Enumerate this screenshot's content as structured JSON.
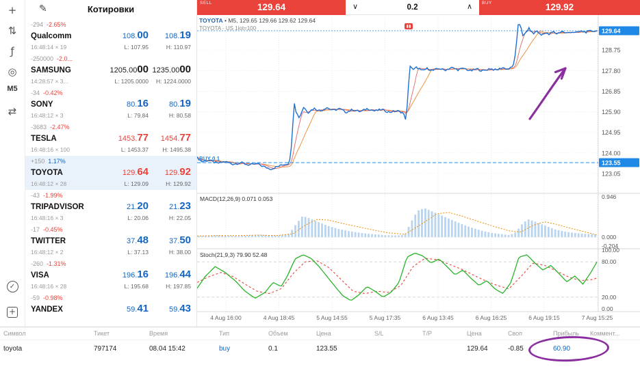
{
  "colors": {
    "red": "#e8423b",
    "blue": "#1565c0",
    "axis_blue": "#1e88e5",
    "line_blue": "#1d6fd1",
    "green": "#28b328",
    "purple": "#8b2fa0",
    "hist_fill": "#b9d4ef",
    "orange": "#f08c00"
  },
  "left_toolbar": {
    "icons": [
      {
        "name": "crosshair-icon",
        "glyph": "+"
      },
      {
        "name": "chart-bars-icon",
        "glyph": "⇅"
      },
      {
        "name": "indicators-icon",
        "glyph": "ƒ"
      },
      {
        "name": "objects-icon",
        "glyph": "◎"
      },
      {
        "name": "timeframe-m5-button",
        "glyph": "M5"
      },
      {
        "name": "cursor-mode-icon",
        "glyph": "⇄"
      }
    ],
    "bottom_icons": [
      {
        "name": "trade-check-icon",
        "glyph": "✓",
        "shape": "ring"
      },
      {
        "name": "add-order-icon",
        "glyph": "+",
        "shape": "sq"
      }
    ]
  },
  "quotes": {
    "title": "Котировки",
    "edit_icon_glyph": "✎",
    "rows": [
      {
        "symbol": "Qualcomm",
        "change": "-294",
        "change_pct": "-2.65%",
        "pct_dir": "down",
        "time": "16:48:14",
        "spread": "19",
        "bid_main": "108.",
        "bid_big": "00",
        "ask_main": "108.",
        "ask_big": "19",
        "low": "L: 107.95",
        "high": "H: 110.97",
        "color": "blue",
        "selected": false
      },
      {
        "symbol": "SAMSUNG",
        "change": "-250000",
        "change_pct": "-2.0...",
        "pct_dir": "down",
        "time": "14:28:57",
        "spread": "3...",
        "bid_main": "1205.00",
        "bid_big": "00",
        "ask_main": "1235.00",
        "ask_big": "00",
        "low": "L: 1205.0000",
        "high": "H: 1224.0000",
        "color": "black",
        "selected": false
      },
      {
        "symbol": "SONY",
        "change": "-34",
        "change_pct": "-0.42%",
        "pct_dir": "down",
        "time": "16:48:12",
        "spread": "3",
        "bid_main": "80.",
        "bid_big": "16",
        "ask_main": "80.",
        "ask_big": "19",
        "low": "L: 79.84",
        "high": "H: 80.58",
        "color": "blue",
        "selected": false
      },
      {
        "symbol": "TESLA",
        "change": "-3683",
        "change_pct": "-2.47%",
        "pct_dir": "down",
        "time": "16:48:16",
        "spread": "100",
        "bid_main": "1453.",
        "bid_big": "77",
        "ask_main": "1454.",
        "ask_big": "77",
        "low": "L: 1453.37",
        "high": "H: 1495.38",
        "color": "red",
        "selected": false
      },
      {
        "symbol": "TOYOTA",
        "change": "+150",
        "change_pct": "1.17%",
        "pct_dir": "up",
        "time": "16:48:12",
        "spread": "28",
        "bid_main": "129.",
        "bid_big": "64",
        "ask_main": "129.",
        "ask_big": "92",
        "low": "L: 129.09",
        "high": "H: 129.92",
        "color": "red",
        "selected": true
      },
      {
        "symbol": "TRIPADVISOR",
        "change": "-43",
        "change_pct": "-1.99%",
        "pct_dir": "down",
        "time": "16:48:16",
        "spread": "3",
        "bid_main": "21.",
        "bid_big": "20",
        "ask_main": "21.",
        "ask_big": "23",
        "low": "L: 20.06",
        "high": "H: 22.05",
        "color": "blue",
        "selected": false
      },
      {
        "symbol": "TWITTER",
        "change": "-17",
        "change_pct": "-0.45%",
        "pct_dir": "down",
        "time": "16:48:12",
        "spread": "2",
        "bid_main": "37.",
        "bid_big": "48",
        "ask_main": "37.",
        "ask_big": "50",
        "low": "L: 37.13",
        "high": "H: 38.00",
        "color": "blue",
        "selected": false
      },
      {
        "symbol": "VISA",
        "change": "-260",
        "change_pct": "-1.31%",
        "pct_dir": "down",
        "time": "16:48:16",
        "spread": "28",
        "bid_main": "196.",
        "bid_big": "16",
        "ask_main": "196.",
        "ask_big": "44",
        "low": "L: 195.68",
        "high": "H: 197.85",
        "color": "blue",
        "selected": false
      },
      {
        "symbol": "YANDEX",
        "change": "-59",
        "change_pct": "-0.98%",
        "pct_dir": "down",
        "time": "",
        "spread": "",
        "bid_main": "59.",
        "bid_big": "41",
        "ask_main": "59.",
        "ask_big": "43",
        "low": "",
        "high": "",
        "color": "blue",
        "selected": false
      }
    ]
  },
  "trade_bar": {
    "sell_label": "SELL",
    "sell_price": "129.64",
    "volume": "0.2",
    "buy_label": "BUY",
    "buy_price": "129.92",
    "decrease_glyph": "∨",
    "increase_glyph": "∧"
  },
  "chart_data": {
    "type": "line",
    "header_symbol": "TOYOTA",
    "header_rest": " • M5, 129.65 129.66 129.62 129.64",
    "subtitle": "TOYOTA - US 1lot=100",
    "current_price": 129.64,
    "buy_line": {
      "price": 123.55,
      "label": "BUY 0.1"
    },
    "price_axis": [
      {
        "label": "129.64",
        "value": 129.64,
        "highlight": true
      },
      {
        "label": "128.75",
        "value": 128.75,
        "highlight": false
      },
      {
        "label": "127.80",
        "value": 127.8,
        "highlight": false
      },
      {
        "label": "126.85",
        "value": 126.85,
        "highlight": false
      },
      {
        "label": "125.90",
        "value": 125.9,
        "highlight": false
      },
      {
        "label": "124.95",
        "value": 124.95,
        "highlight": false
      },
      {
        "label": "124.00",
        "value": 124.0,
        "highlight": false
      },
      {
        "label": "123.55",
        "value": 123.55,
        "highlight": true
      },
      {
        "label": "123.05",
        "value": 123.05,
        "highlight": false
      }
    ],
    "x_labels": [
      "4 Aug 16:00",
      "4 Aug 18:45",
      "5 Aug 14:55",
      "5 Aug 17:35",
      "6 Aug 13:45",
      "6 Aug 16:25",
      "6 Aug 19:15",
      "7 Aug 15:25"
    ],
    "price_points": [
      [
        0,
        123.78
      ],
      [
        0.012,
        123.6
      ],
      [
        0.03,
        123.66
      ],
      [
        0.05,
        123.52
      ],
      [
        0.07,
        123.6
      ],
      [
        0.09,
        123.48
      ],
      [
        0.11,
        123.55
      ],
      [
        0.13,
        123.44
      ],
      [
        0.15,
        123.5
      ],
      [
        0.17,
        123.34
      ],
      [
        0.185,
        123.26
      ],
      [
        0.2,
        123.36
      ],
      [
        0.215,
        123.46
      ],
      [
        0.23,
        123.52
      ],
      [
        0.237,
        124.4
      ],
      [
        0.242,
        126.45
      ],
      [
        0.248,
        125.85
      ],
      [
        0.256,
        125.62
      ],
      [
        0.266,
        126.12
      ],
      [
        0.278,
        125.88
      ],
      [
        0.292,
        126.06
      ],
      [
        0.308,
        125.94
      ],
      [
        0.324,
        126.1
      ],
      [
        0.34,
        125.96
      ],
      [
        0.356,
        126.04
      ],
      [
        0.372,
        125.88
      ],
      [
        0.39,
        126.0
      ],
      [
        0.408,
        125.9
      ],
      [
        0.426,
        126.05
      ],
      [
        0.444,
        125.94
      ],
      [
        0.462,
        126.0
      ],
      [
        0.48,
        125.88
      ],
      [
        0.5,
        125.94
      ],
      [
        0.515,
        125.86
      ],
      [
        0.523,
        125.5
      ],
      [
        0.528,
        126.9
      ],
      [
        0.533,
        128.08
      ],
      [
        0.54,
        127.82
      ],
      [
        0.55,
        127.96
      ],
      [
        0.562,
        127.78
      ],
      [
        0.576,
        127.9
      ],
      [
        0.59,
        127.8
      ],
      [
        0.605,
        127.9
      ],
      [
        0.62,
        127.82
      ],
      [
        0.636,
        127.94
      ],
      [
        0.652,
        127.84
      ],
      [
        0.668,
        127.9
      ],
      [
        0.684,
        127.78
      ],
      [
        0.7,
        127.88
      ],
      [
        0.716,
        127.78
      ],
      [
        0.732,
        127.9
      ],
      [
        0.748,
        127.82
      ],
      [
        0.764,
        127.94
      ],
      [
        0.778,
        127.86
      ],
      [
        0.79,
        127.98
      ],
      [
        0.797,
        128.6
      ],
      [
        0.803,
        129.92
      ],
      [
        0.809,
        129.96
      ],
      [
        0.815,
        129.35
      ],
      [
        0.823,
        129.58
      ],
      [
        0.831,
        129.76
      ],
      [
        0.84,
        129.48
      ],
      [
        0.85,
        129.64
      ],
      [
        0.86,
        129.42
      ],
      [
        0.87,
        129.56
      ],
      [
        0.88,
        129.46
      ],
      [
        0.89,
        129.6
      ],
      [
        0.9,
        129.5
      ],
      [
        0.912,
        129.62
      ],
      [
        0.924,
        129.52
      ],
      [
        0.936,
        129.6
      ],
      [
        0.948,
        129.54
      ],
      [
        0.96,
        129.62
      ],
      [
        0.972,
        129.58
      ],
      [
        0.985,
        129.62
      ],
      [
        1,
        129.64
      ]
    ],
    "macd": {
      "label": "MACD(12,26,9) 0.071 0.053",
      "axis": [
        {
          "label": "0.946",
          "value": 0.946
        },
        {
          "label": "0.000",
          "value": 0.0
        },
        {
          "label": "-0.204",
          "value": -0.204
        }
      ],
      "hist_anchors": [
        [
          0,
          0.03
        ],
        [
          0.05,
          0.05
        ],
        [
          0.1,
          0.03
        ],
        [
          0.15,
          0.06
        ],
        [
          0.2,
          0.04
        ],
        [
          0.228,
          0.08
        ],
        [
          0.245,
          0.3
        ],
        [
          0.262,
          0.5
        ],
        [
          0.28,
          0.44
        ],
        [
          0.3,
          0.36
        ],
        [
          0.325,
          0.27
        ],
        [
          0.35,
          0.2
        ],
        [
          0.38,
          0.14
        ],
        [
          0.41,
          0.1
        ],
        [
          0.44,
          0.07
        ],
        [
          0.47,
          0.05
        ],
        [
          0.5,
          0.04
        ],
        [
          0.52,
          0.06
        ],
        [
          0.535,
          0.35
        ],
        [
          0.552,
          0.62
        ],
        [
          0.57,
          0.68
        ],
        [
          0.59,
          0.6
        ],
        [
          0.615,
          0.5
        ],
        [
          0.64,
          0.4
        ],
        [
          0.665,
          0.3
        ],
        [
          0.69,
          0.22
        ],
        [
          0.715,
          0.15
        ],
        [
          0.74,
          0.1
        ],
        [
          0.765,
          0.07
        ],
        [
          0.785,
          0.05
        ],
        [
          0.8,
          0.12
        ],
        [
          0.815,
          0.3
        ],
        [
          0.83,
          0.42
        ],
        [
          0.845,
          0.38
        ],
        [
          0.86,
          0.32
        ],
        [
          0.88,
          0.25
        ],
        [
          0.9,
          0.18
        ],
        [
          0.925,
          0.13
        ],
        [
          0.95,
          0.1
        ],
        [
          0.975,
          0.08
        ],
        [
          1,
          0.071
        ]
      ],
      "signal_anchors": [
        [
          0,
          0.03
        ],
        [
          0.05,
          0.04
        ],
        [
          0.1,
          0.04
        ],
        [
          0.15,
          0.05
        ],
        [
          0.2,
          0.04
        ],
        [
          0.24,
          0.08
        ],
        [
          0.27,
          0.28
        ],
        [
          0.3,
          0.42
        ],
        [
          0.33,
          0.4
        ],
        [
          0.36,
          0.33
        ],
        [
          0.4,
          0.25
        ],
        [
          0.44,
          0.17
        ],
        [
          0.48,
          0.1
        ],
        [
          0.52,
          0.07
        ],
        [
          0.56,
          0.3
        ],
        [
          0.6,
          0.55
        ],
        [
          0.63,
          0.58
        ],
        [
          0.66,
          0.5
        ],
        [
          0.7,
          0.38
        ],
        [
          0.74,
          0.26
        ],
        [
          0.78,
          0.15
        ],
        [
          0.81,
          0.12
        ],
        [
          0.84,
          0.28
        ],
        [
          0.87,
          0.36
        ],
        [
          0.9,
          0.3
        ],
        [
          0.93,
          0.22
        ],
        [
          0.96,
          0.15
        ],
        [
          1,
          0.053
        ]
      ]
    },
    "stoch": {
      "label": "Stoch(21,9,3) 79.90 52.48",
      "levels": [
        80,
        20
      ],
      "axis": [
        {
          "label": "100.00",
          "value": 100
        },
        {
          "label": "80.00",
          "value": 80
        },
        {
          "label": "20.00",
          "value": 20
        },
        {
          "label": "0.00",
          "value": 0
        }
      ],
      "main_anchors": [
        [
          0,
          35
        ],
        [
          0.02,
          55
        ],
        [
          0.045,
          72
        ],
        [
          0.07,
          62
        ],
        [
          0.095,
          48
        ],
        [
          0.12,
          30
        ],
        [
          0.145,
          18
        ],
        [
          0.17,
          28
        ],
        [
          0.19,
          45
        ],
        [
          0.21,
          38
        ],
        [
          0.225,
          55
        ],
        [
          0.245,
          85
        ],
        [
          0.265,
          92
        ],
        [
          0.285,
          86
        ],
        [
          0.305,
          72
        ],
        [
          0.325,
          55
        ],
        [
          0.345,
          38
        ],
        [
          0.365,
          22
        ],
        [
          0.385,
          14
        ],
        [
          0.405,
          24
        ],
        [
          0.425,
          38
        ],
        [
          0.445,
          30
        ],
        [
          0.465,
          20
        ],
        [
          0.485,
          28
        ],
        [
          0.505,
          45
        ],
        [
          0.525,
          88
        ],
        [
          0.545,
          95
        ],
        [
          0.565,
          90
        ],
        [
          0.585,
          78
        ],
        [
          0.605,
          85
        ],
        [
          0.625,
          72
        ],
        [
          0.645,
          58
        ],
        [
          0.665,
          66
        ],
        [
          0.685,
          52
        ],
        [
          0.705,
          40
        ],
        [
          0.725,
          48
        ],
        [
          0.745,
          34
        ],
        [
          0.765,
          26
        ],
        [
          0.785,
          45
        ],
        [
          0.805,
          88
        ],
        [
          0.825,
          92
        ],
        [
          0.845,
          78
        ],
        [
          0.865,
          66
        ],
        [
          0.885,
          74
        ],
        [
          0.905,
          60
        ],
        [
          0.925,
          46
        ],
        [
          0.945,
          56
        ],
        [
          0.965,
          42
        ],
        [
          0.985,
          62
        ],
        [
          1,
          79.9
        ]
      ],
      "signal_anchors": [
        [
          0,
          45
        ],
        [
          0.03,
          55
        ],
        [
          0.06,
          62
        ],
        [
          0.09,
          55
        ],
        [
          0.12,
          42
        ],
        [
          0.15,
          30
        ],
        [
          0.18,
          26
        ],
        [
          0.21,
          34
        ],
        [
          0.24,
          60
        ],
        [
          0.27,
          80
        ],
        [
          0.3,
          82
        ],
        [
          0.33,
          70
        ],
        [
          0.36,
          50
        ],
        [
          0.39,
          30
        ],
        [
          0.42,
          26
        ],
        [
          0.45,
          30
        ],
        [
          0.48,
          28
        ],
        [
          0.51,
          40
        ],
        [
          0.54,
          72
        ],
        [
          0.57,
          86
        ],
        [
          0.6,
          84
        ],
        [
          0.63,
          76
        ],
        [
          0.66,
          68
        ],
        [
          0.69,
          58
        ],
        [
          0.72,
          48
        ],
        [
          0.75,
          40
        ],
        [
          0.78,
          34
        ],
        [
          0.81,
          55
        ],
        [
          0.84,
          78
        ],
        [
          0.87,
          74
        ],
        [
          0.9,
          64
        ],
        [
          0.93,
          54
        ],
        [
          0.96,
          48
        ],
        [
          0.99,
          50
        ],
        [
          1,
          52.48
        ]
      ]
    }
  },
  "positions_table": {
    "headers": [
      "Символ",
      "Тикет",
      "Время",
      "Тип",
      "Объем",
      "Цена",
      "S/L",
      "T/P",
      "Цена",
      "Своп",
      "Прибыль",
      "Коммент..."
    ],
    "row": [
      "toyota",
      "797174",
      "08.04 15:42",
      "buy",
      "0.1",
      "123.55",
      "",
      "",
      "129.64",
      "-0.85",
      "60.90",
      ""
    ]
  }
}
